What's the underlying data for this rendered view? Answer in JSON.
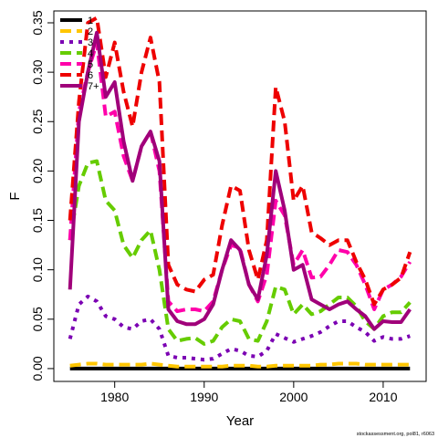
{
  "chart_data": {
    "type": "line",
    "xlabel": "Year",
    "ylabel": "F",
    "xlim": [
      1973.2,
      2014.8
    ],
    "ylim": [
      -0.013,
      0.362
    ],
    "xticks": [
      1980,
      1990,
      2000,
      2010
    ],
    "yticks": [
      0.0,
      0.05,
      0.1,
      0.15,
      0.2,
      0.25,
      0.3,
      0.35
    ],
    "ytick_labels": [
      "0.00",
      "0.05",
      "0.10",
      "0.15",
      "0.20",
      "0.25",
      "0.30",
      "0.35"
    ],
    "legend_position": "top-left",
    "grid": false,
    "footnote": "stockassessment.org, pol81, r6063",
    "x": [
      1975,
      1976,
      1977,
      1978,
      1979,
      1980,
      1981,
      1982,
      1983,
      1984,
      1985,
      1986,
      1987,
      1988,
      1989,
      1990,
      1991,
      1992,
      1993,
      1994,
      1995,
      1996,
      1997,
      1998,
      1999,
      2000,
      2001,
      2002,
      2003,
      2004,
      2005,
      2006,
      2007,
      2008,
      2009,
      2010,
      2011,
      2012,
      2013
    ],
    "series": [
      {
        "name": "1",
        "color": "#000000",
        "dash": "solid",
        "values": [
          0.0,
          0.0,
          0.0,
          0.0,
          0.0,
          0.0,
          0.0,
          0.0,
          0.0,
          0.0,
          0.0,
          0.0,
          0.0,
          0.0,
          0.0,
          0.0,
          0.0,
          0.0,
          0.0,
          0.0,
          0.0,
          0.0,
          0.0,
          0.0,
          0.0,
          0.0,
          0.0,
          0.0,
          0.0,
          0.0,
          0.0,
          0.0,
          0.0,
          0.0,
          0.0,
          0.0,
          0.0,
          0.0,
          0.0
        ]
      },
      {
        "name": "2",
        "color": "#FFC600",
        "dash": "dashed",
        "values": [
          0.003,
          0.004,
          0.005,
          0.005,
          0.004,
          0.004,
          0.004,
          0.004,
          0.004,
          0.005,
          0.004,
          0.003,
          0.002,
          0.002,
          0.002,
          0.002,
          0.002,
          0.002,
          0.003,
          0.003,
          0.003,
          0.002,
          0.002,
          0.003,
          0.003,
          0.003,
          0.003,
          0.003,
          0.004,
          0.004,
          0.005,
          0.005,
          0.005,
          0.004,
          0.004,
          0.004,
          0.004,
          0.004,
          0.004
        ]
      },
      {
        "name": "3",
        "color": "#7B00B3",
        "dash": "dotted",
        "values": [
          0.03,
          0.065,
          0.073,
          0.068,
          0.053,
          0.05,
          0.042,
          0.04,
          0.048,
          0.05,
          0.04,
          0.013,
          0.011,
          0.011,
          0.01,
          0.009,
          0.01,
          0.015,
          0.02,
          0.018,
          0.013,
          0.012,
          0.018,
          0.035,
          0.031,
          0.027,
          0.03,
          0.033,
          0.037,
          0.043,
          0.048,
          0.048,
          0.042,
          0.037,
          0.028,
          0.032,
          0.03,
          0.03,
          0.033
        ]
      },
      {
        "name": "4",
        "color": "#66CC00",
        "dash": "dashed",
        "values": [
          0.13,
          0.185,
          0.208,
          0.21,
          0.17,
          0.16,
          0.125,
          0.112,
          0.13,
          0.14,
          0.1,
          0.04,
          0.028,
          0.03,
          0.031,
          0.025,
          0.028,
          0.042,
          0.05,
          0.048,
          0.03,
          0.028,
          0.048,
          0.083,
          0.08,
          0.055,
          0.065,
          0.055,
          0.058,
          0.065,
          0.072,
          0.072,
          0.063,
          0.048,
          0.04,
          0.053,
          0.057,
          0.057,
          0.067
        ]
      },
      {
        "name": "5",
        "color": "#FF00AA",
        "dash": "dashed",
        "values": [
          0.13,
          0.26,
          0.3,
          0.33,
          0.255,
          0.26,
          0.215,
          0.19,
          0.225,
          0.24,
          0.2,
          0.068,
          0.058,
          0.06,
          0.06,
          0.058,
          0.068,
          0.1,
          0.125,
          0.122,
          0.085,
          0.068,
          0.095,
          0.17,
          0.155,
          0.105,
          0.12,
          0.092,
          0.093,
          0.105,
          0.12,
          0.118,
          0.105,
          0.085,
          0.06,
          0.08,
          0.085,
          0.093,
          0.108
        ]
      },
      {
        "name": "6",
        "color": "#EE0000",
        "dash": "dashed",
        "values": [
          0.15,
          0.27,
          0.35,
          0.355,
          0.295,
          0.33,
          0.28,
          0.245,
          0.3,
          0.335,
          0.29,
          0.105,
          0.085,
          0.08,
          0.078,
          0.09,
          0.095,
          0.145,
          0.185,
          0.18,
          0.12,
          0.09,
          0.13,
          0.285,
          0.25,
          0.17,
          0.185,
          0.138,
          0.132,
          0.125,
          0.13,
          0.13,
          0.108,
          0.09,
          0.065,
          0.08,
          0.085,
          0.092,
          0.118
        ]
      },
      {
        "name": "7+",
        "color": "#A0007A",
        "dash": "solid",
        "values": [
          0.08,
          0.25,
          0.3,
          0.34,
          0.275,
          0.29,
          0.23,
          0.19,
          0.225,
          0.24,
          0.21,
          0.06,
          0.048,
          0.045,
          0.045,
          0.05,
          0.065,
          0.1,
          0.13,
          0.12,
          0.085,
          0.07,
          0.115,
          0.2,
          0.16,
          0.1,
          0.105,
          0.07,
          0.065,
          0.06,
          0.065,
          0.068,
          0.06,
          0.053,
          0.04,
          0.048,
          0.047,
          0.047,
          0.06
        ]
      }
    ]
  }
}
